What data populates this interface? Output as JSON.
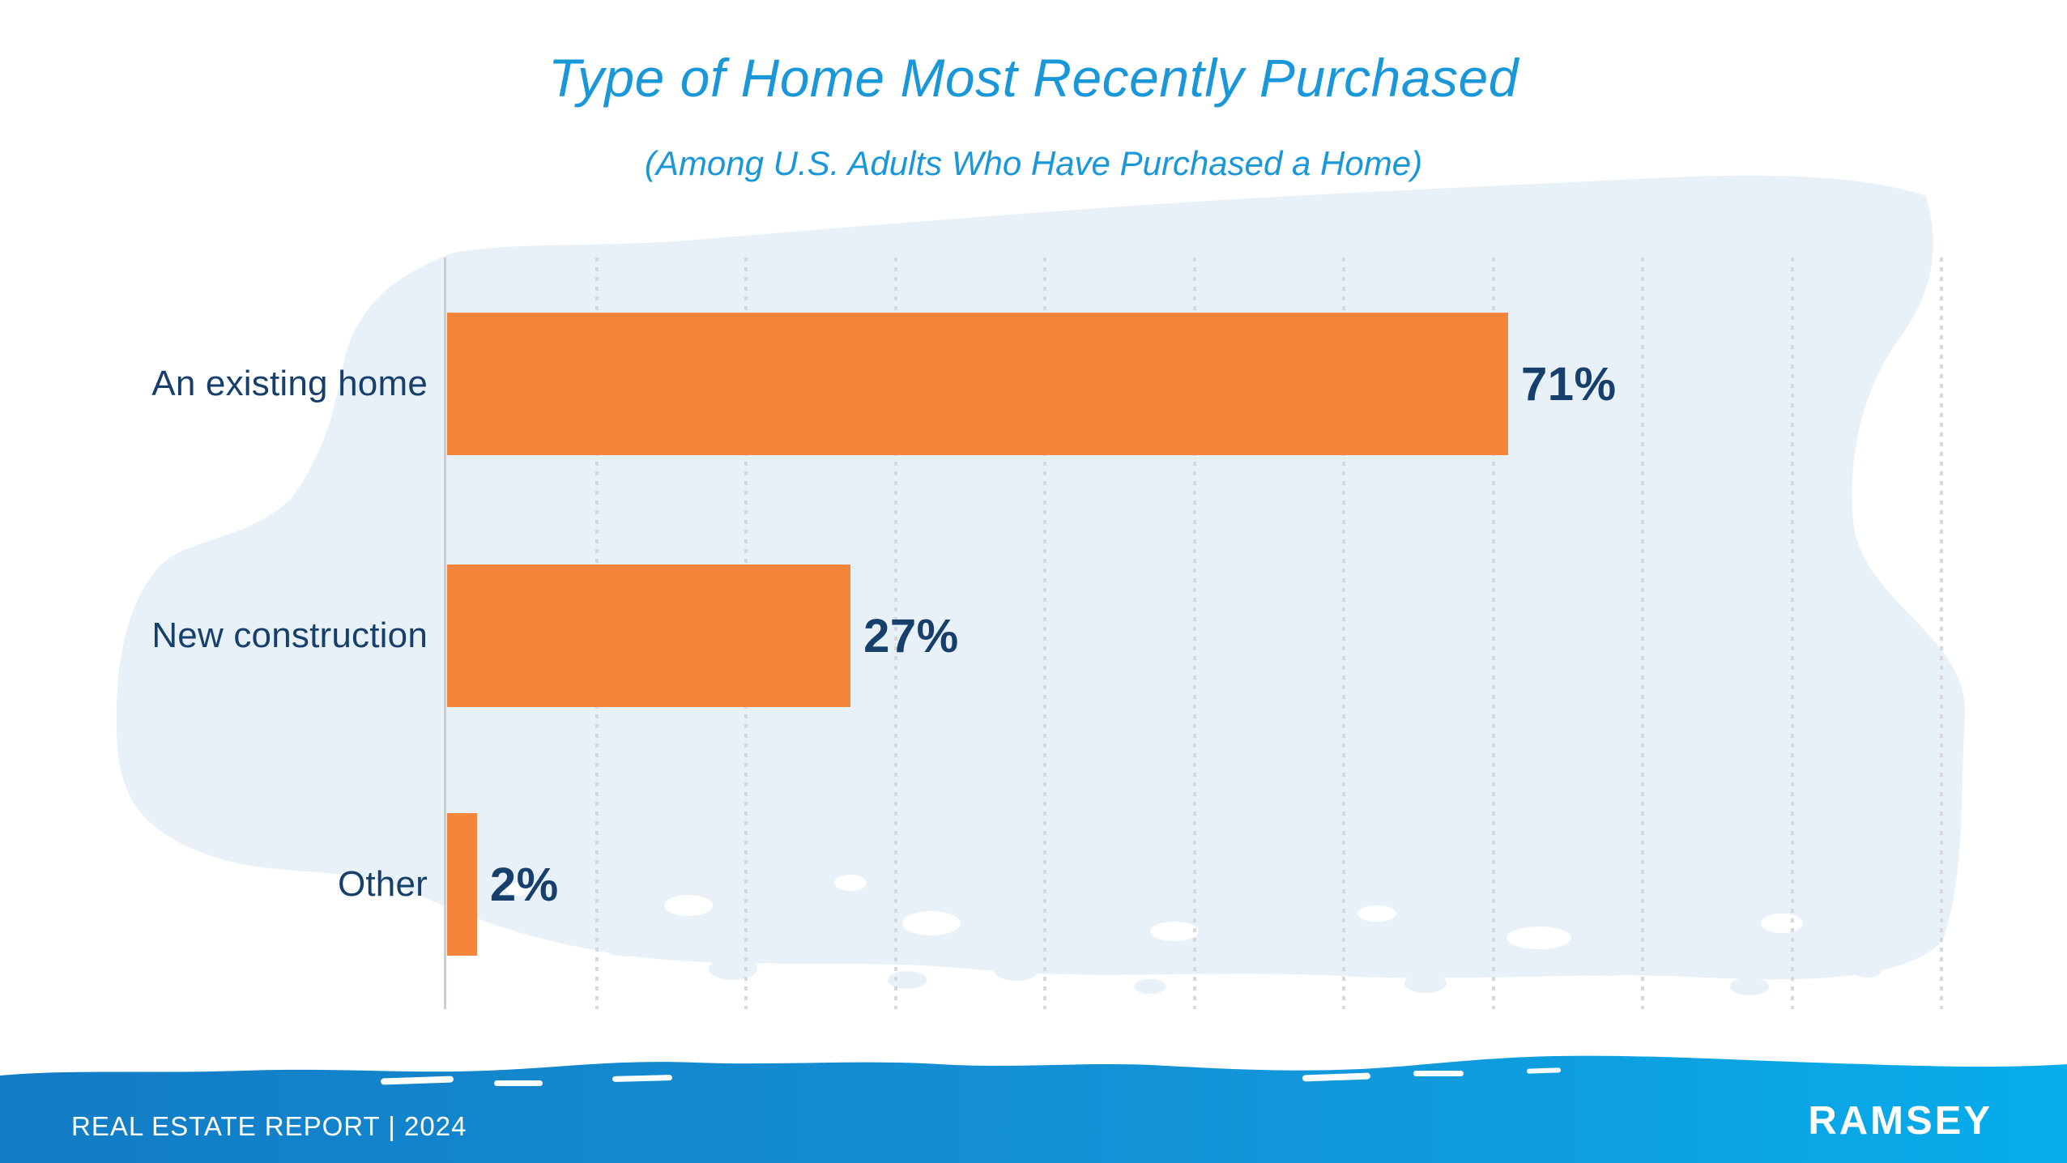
{
  "page": {
    "title": "Type of Home Most Recently Purchased",
    "subtitle": "(Among U.S. Adults Who Have Purchased a Home)"
  },
  "chart_data": {
    "type": "bar",
    "orientation": "horizontal",
    "title": "Type of Home Most Recently Purchased",
    "subtitle": "(Among U.S. Adults Who Have Purchased a Home)",
    "categories": [
      "An existing home",
      "New construction",
      "Other"
    ],
    "values": [
      71,
      27,
      2
    ],
    "value_labels": [
      "71%",
      "27%",
      "2%"
    ],
    "xlim": [
      0,
      100
    ],
    "gridline_interval_pct": 10,
    "grid": "vertical dotted gridlines, no tick labels",
    "legend": "none"
  },
  "footer": {
    "report_label": "REAL ESTATE REPORT | 2024",
    "brand": "RAMSEY"
  },
  "colors": {
    "title_blue": "#1A97D8",
    "bar_orange": "#F4853A",
    "text_navy": "#16406B",
    "brush_light_blue": "#E8F0F8",
    "gridline_gray": "#D8D8D8",
    "axis_gray": "#C9CDD2",
    "footer_blue_left": "#127CC5",
    "footer_blue_right": "#07ADEB",
    "footer_text": "#FFFFFF"
  }
}
